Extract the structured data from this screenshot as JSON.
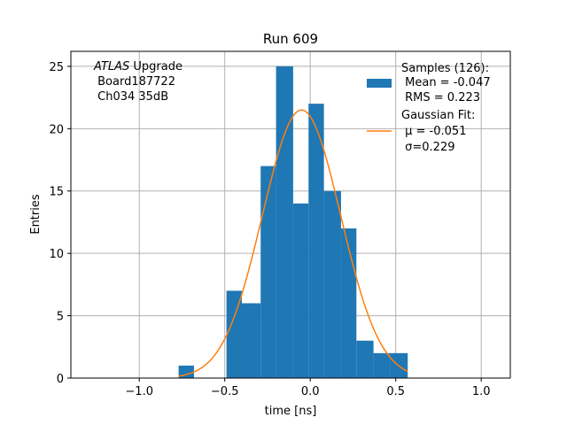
{
  "chart_data": {
    "type": "histogram",
    "title": "Run 609",
    "xlabel": "time [ns]",
    "ylabel": "Entries",
    "xlim": [
      -1.4,
      1.17
    ],
    "ylim": [
      0,
      26.2
    ],
    "x_ticks": [
      -1.0,
      -0.5,
      0.0,
      0.5,
      1.0
    ],
    "x_tick_labels": [
      "−1.0",
      "−0.5",
      "0.0",
      "0.5",
      "1.0"
    ],
    "y_ticks": [
      0,
      5,
      10,
      15,
      20,
      25
    ],
    "y_tick_labels": [
      "0",
      "5",
      "10",
      "15",
      "20",
      "25"
    ],
    "grid": true,
    "bar_color": "#1f77b4",
    "fit_color": "#ff7f0e",
    "bins": [
      {
        "x0": -0.77,
        "x1": -0.68,
        "count": 1
      },
      {
        "x0": -0.49,
        "x1": -0.4,
        "count": 7
      },
      {
        "x0": -0.4,
        "x1": -0.29,
        "count": 6
      },
      {
        "x0": -0.29,
        "x1": -0.2,
        "count": 17
      },
      {
        "x0": -0.2,
        "x1": -0.1,
        "count": 25
      },
      {
        "x0": -0.1,
        "x1": -0.01,
        "count": 14
      },
      {
        "x0": -0.01,
        "x1": 0.08,
        "count": 22
      },
      {
        "x0": 0.08,
        "x1": 0.18,
        "count": 15
      },
      {
        "x0": 0.18,
        "x1": 0.27,
        "count": 12
      },
      {
        "x0": 0.27,
        "x1": 0.37,
        "count": 3
      },
      {
        "x0": 0.37,
        "x1": 0.47,
        "count": 2
      },
      {
        "x0": 0.47,
        "x1": 0.57,
        "count": 2
      }
    ],
    "fit": {
      "mu": -0.051,
      "sigma": 0.229,
      "amplitude": 21.5,
      "x_range": [
        -0.77,
        0.57
      ]
    },
    "annotation": {
      "line1_italic": "ATLAS",
      "line1_rest": " Upgrade",
      "line2": " Board187722",
      "line3": " Ch034 35dB"
    },
    "legend": {
      "position": "upper right",
      "entries": [
        {
          "label_lines": [
            "Samples (126):",
            " Mean = -0.047",
            " RMS = 0.223"
          ],
          "marker": "patch"
        },
        {
          "label_lines": [
            "Gaussian Fit:",
            " μ = -0.051",
            " σ=0.229"
          ],
          "marker": "line"
        }
      ]
    }
  }
}
